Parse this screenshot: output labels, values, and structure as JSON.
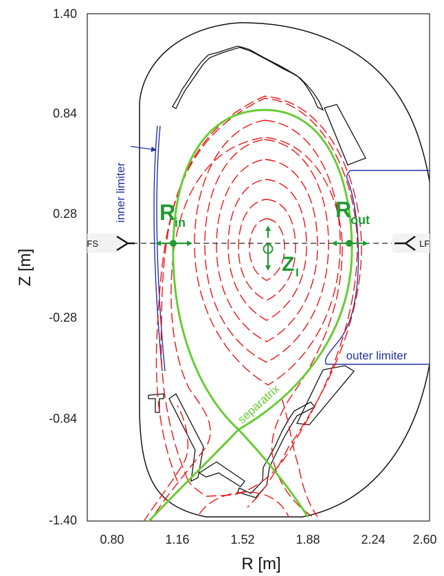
{
  "axes": {
    "xlabel": "R [m]",
    "ylabel": "Z [m]",
    "xticks": [
      "0.80",
      "1.16",
      "1.52",
      "1.88",
      "2.24",
      "2.60"
    ],
    "yticks": [
      "1.40",
      "0.84",
      "0.28",
      "-0.28",
      "-0.84",
      "-1.40"
    ],
    "xlim": [
      0.6,
      2.6
    ],
    "ylim": [
      -1.4,
      1.4
    ]
  },
  "labels": {
    "inner_limiter": "inner limiter",
    "outer_limiter": "outer limiter",
    "separatrix": "separatrix",
    "hfs": "HFS",
    "lfs": "LFS",
    "r_in_main": "R",
    "r_in_sub": "in",
    "r_out_main": "R",
    "r_out_sub": "out",
    "z_main": "Z",
    "z_sub": "I"
  },
  "colors": {
    "separatrix": "#66cc33",
    "flux_surfaces": "#ee1111",
    "limiter": "#2233aa",
    "marker": "#229933",
    "wall": "#111111"
  }
}
